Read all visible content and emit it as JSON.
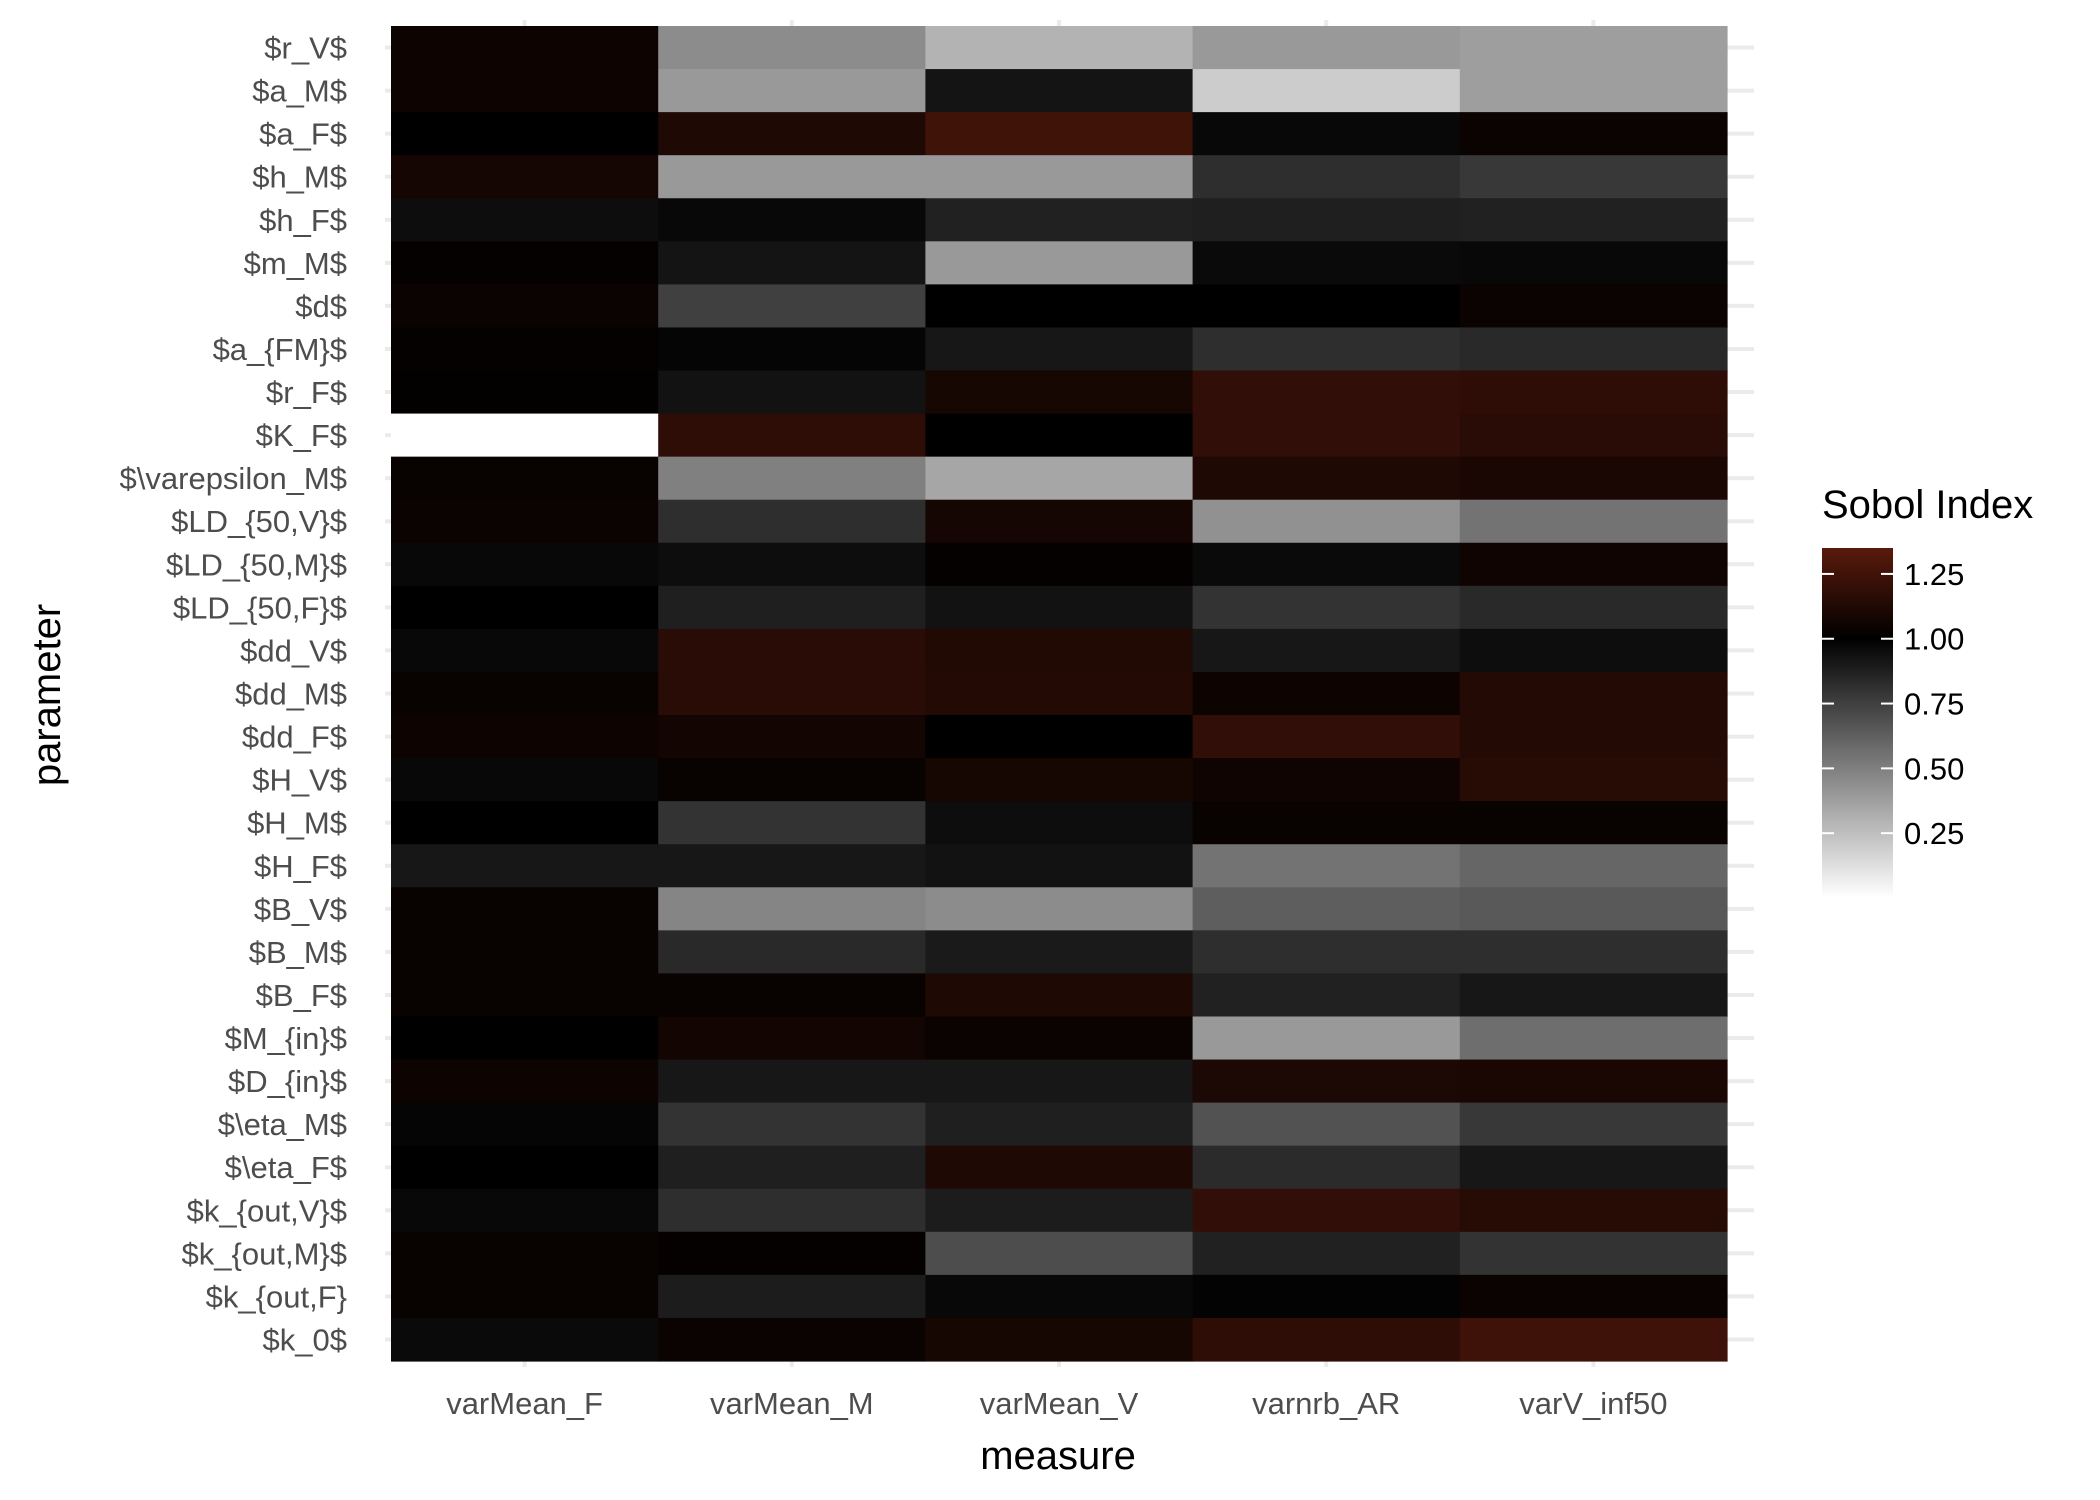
{
  "chart_data": {
    "type": "heatmap",
    "xlabel": "measure",
    "ylabel": "parameter",
    "x_categories": [
      "varMean_F",
      "varMean_M",
      "varMean_V",
      "varnrb_AR",
      "varV_inf50"
    ],
    "y_categories": [
      "$r_V$",
      "$a_M$",
      "$a_F$",
      "$h_M$",
      "$h_F$",
      "$m_M$",
      "$d$",
      "$a_{FM}$",
      "$r_F$",
      "$K_F$",
      "$\\varepsilon_M$",
      "$LD_{50,V}$",
      "$LD_{50,M}$",
      "$LD_{50,F}$",
      "$dd_V$",
      "$dd_M$",
      "$dd_F$",
      "$H_V$",
      "$H_M$",
      "$H_F$",
      "$B_V$",
      "$B_M$",
      "$B_F$",
      "$M_{in}$",
      "$D_{in}$",
      "$\\eta_M$",
      "$\\eta_F$",
      "$k_{out,V}$",
      "$k_{out,M}$",
      "$k_{out,F}",
      "$k_0$"
    ],
    "values": [
      [
        1.05,
        0.45,
        0.3,
        0.4,
        0.38
      ],
      [
        1.05,
        0.4,
        0.92,
        0.2,
        0.38
      ],
      [
        1.0,
        1.12,
        1.25,
        0.97,
        1.04
      ],
      [
        1.08,
        0.4,
        0.4,
        0.82,
        0.78
      ],
      [
        0.95,
        0.97,
        0.87,
        0.88,
        0.87
      ],
      [
        1.02,
        0.92,
        0.4,
        0.96,
        0.97
      ],
      [
        1.04,
        0.75,
        1.0,
        1.0,
        1.04
      ],
      [
        1.02,
        0.98,
        0.91,
        0.82,
        0.84
      ],
      [
        1.01,
        0.93,
        1.09,
        1.19,
        1.18
      ],
      [
        null,
        1.18,
        1.0,
        1.19,
        1.16
      ],
      [
        1.03,
        0.5,
        0.35,
        1.12,
        1.1
      ],
      [
        1.04,
        0.82,
        1.08,
        0.43,
        0.55
      ],
      [
        0.97,
        0.95,
        1.02,
        0.96,
        1.06
      ],
      [
        1.0,
        0.88,
        0.93,
        0.8,
        0.84
      ],
      [
        0.97,
        1.16,
        1.13,
        0.91,
        0.95
      ],
      [
        1.03,
        1.16,
        1.14,
        1.05,
        1.14
      ],
      [
        1.05,
        1.07,
        1.0,
        1.19,
        1.14
      ],
      [
        0.97,
        1.03,
        1.09,
        1.06,
        1.15
      ],
      [
        1.0,
        0.8,
        0.95,
        1.03,
        1.03
      ],
      [
        0.91,
        0.91,
        0.93,
        0.55,
        0.6
      ],
      [
        1.03,
        0.48,
        0.45,
        0.63,
        0.65
      ],
      [
        1.03,
        0.84,
        0.9,
        0.82,
        0.82
      ],
      [
        1.03,
        1.03,
        1.12,
        0.87,
        0.91
      ],
      [
        1.0,
        1.07,
        1.04,
        0.4,
        0.57
      ],
      [
        1.05,
        0.91,
        0.91,
        1.11,
        1.1
      ],
      [
        0.98,
        0.8,
        0.88,
        0.68,
        0.78
      ],
      [
        1.0,
        0.88,
        1.12,
        0.83,
        0.91
      ],
      [
        0.97,
        0.82,
        0.89,
        1.19,
        1.15
      ],
      [
        1.03,
        1.02,
        0.7,
        0.87,
        0.8
      ],
      [
        1.03,
        0.89,
        0.97,
        0.99,
        1.04
      ],
      [
        0.96,
        1.04,
        1.09,
        1.18,
        1.24
      ]
    ],
    "legend": {
      "title": "Sobol Index",
      "position": "right",
      "ticks": [
        {
          "value": 1.25,
          "label": "1.25"
        },
        {
          "value": 1.0,
          "label": "1.00"
        },
        {
          "value": 0.75,
          "label": "0.75"
        },
        {
          "value": 0.5,
          "label": "0.50"
        },
        {
          "value": 0.25,
          "label": "0.25"
        }
      ],
      "range": [
        0.0,
        1.35
      ]
    },
    "colors": {
      "low": "#ffffff",
      "mid": "#000000",
      "high": "#5a1a0c",
      "na": "#ffffff",
      "grid": "#ebebeb"
    },
    "grid": true
  }
}
